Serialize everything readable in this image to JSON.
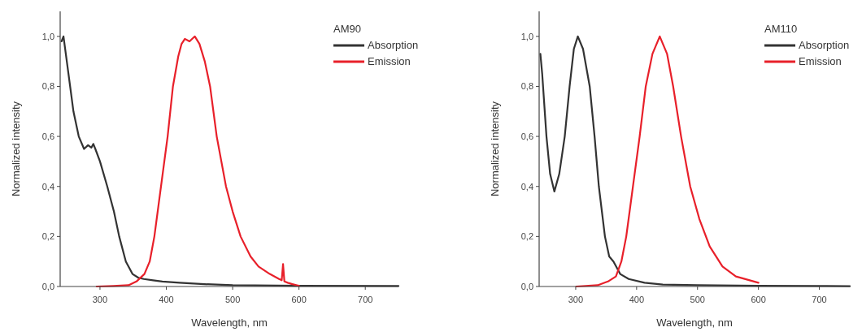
{
  "chart_data": [
    {
      "type": "line",
      "legend_title": "AM90",
      "xlabel": "Wavelength, nm",
      "ylabel": "Normalized intensity",
      "legend": "top right",
      "xlim": [
        240,
        750
      ],
      "ylim": [
        0,
        1.1
      ],
      "xticks": [
        300,
        400,
        500,
        600,
        700
      ],
      "yticks": [
        {
          "value": 0,
          "label": "0,0"
        },
        {
          "value": 0.2,
          "label": "0,2"
        },
        {
          "value": 0.4,
          "label": "0,4"
        },
        {
          "value": 0.6,
          "label": "0,6"
        },
        {
          "value": 0.8,
          "label": "0,8"
        },
        {
          "value": 1,
          "label": "1,0"
        }
      ],
      "series": [
        {
          "name": "Absorption",
          "color": "#333333",
          "x": [
            242,
            245,
            250,
            255,
            260,
            268,
            276,
            282,
            287,
            290,
            293,
            300,
            311,
            321,
            329,
            339,
            349,
            358,
            366,
            380,
            394,
            420,
            452,
            500,
            600,
            750
          ],
          "values": [
            0.98,
            1.0,
            0.9,
            0.8,
            0.7,
            0.6,
            0.55,
            0.565,
            0.555,
            0.57,
            0.55,
            0.5,
            0.4,
            0.3,
            0.2,
            0.1,
            0.05,
            0.035,
            0.03,
            0.025,
            0.02,
            0.015,
            0.01,
            0.005,
            0.003,
            0.002
          ]
        },
        {
          "name": "Emission",
          "color": "#e8202a",
          "x": [
            295,
            320,
            343,
            355,
            367,
            375,
            382,
            392,
            402,
            410,
            418,
            423,
            428,
            435,
            443,
            450,
            458,
            466,
            476,
            490,
            500,
            512,
            527,
            539,
            556,
            570,
            574,
            576,
            578,
            583,
            589,
            597,
            600
          ],
          "values": [
            0,
            0.002,
            0.005,
            0.02,
            0.05,
            0.1,
            0.2,
            0.4,
            0.6,
            0.8,
            0.92,
            0.97,
            0.99,
            0.98,
            1.0,
            0.97,
            0.9,
            0.8,
            0.6,
            0.4,
            0.3,
            0.2,
            0.12,
            0.08,
            0.05,
            0.03,
            0.025,
            0.09,
            0.02,
            0.015,
            0.01,
            0.005,
            0.003
          ]
        }
      ]
    },
    {
      "type": "line",
      "legend_title": "AM110",
      "xlabel": "Wavelength, nm",
      "ylabel": "Normalized intensity",
      "legend": "top right",
      "xlim": [
        240,
        750
      ],
      "ylim": [
        0,
        1.1
      ],
      "xticks": [
        300,
        400,
        500,
        600,
        700
      ],
      "yticks": [
        {
          "value": 0,
          "label": "0,0"
        },
        {
          "value": 0.2,
          "label": "0,2"
        },
        {
          "value": 0.4,
          "label": "0,4"
        },
        {
          "value": 0.6,
          "label": "0,6"
        },
        {
          "value": 0.8,
          "label": "0,8"
        },
        {
          "value": 1,
          "label": "1,0"
        }
      ],
      "series": [
        {
          "name": "Absorption",
          "color": "#333333",
          "x": [
            242,
            245,
            252,
            258,
            265,
            273,
            282,
            290,
            297,
            303.5,
            312,
            323,
            331,
            338,
            348,
            355,
            362,
            373,
            387,
            413,
            443,
            500,
            600,
            700,
            750
          ],
          "values": [
            0.93,
            0.85,
            0.6,
            0.45,
            0.38,
            0.45,
            0.6,
            0.8,
            0.95,
            1.0,
            0.95,
            0.8,
            0.6,
            0.4,
            0.2,
            0.12,
            0.1,
            0.05,
            0.03,
            0.015,
            0.008,
            0.005,
            0.003,
            0.002,
            0.001
          ]
        },
        {
          "name": "Emission",
          "color": "#e8202a",
          "x": [
            301,
            336,
            353,
            366,
            375,
            383,
            394,
            405,
            415,
            426,
            438,
            450,
            460,
            473,
            488,
            503,
            520,
            541,
            563,
            600
          ],
          "values": [
            0,
            0.005,
            0.02,
            0.04,
            0.1,
            0.2,
            0.4,
            0.6,
            0.8,
            0.93,
            1.0,
            0.93,
            0.8,
            0.6,
            0.4,
            0.27,
            0.16,
            0.08,
            0.04,
            0.015
          ]
        }
      ]
    }
  ]
}
